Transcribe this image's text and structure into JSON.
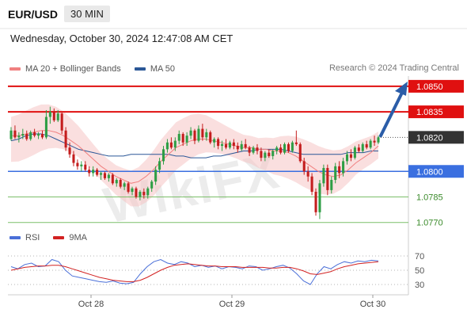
{
  "header": {
    "symbol": "EUR/USD",
    "timeframe": "30 MIN",
    "datetime": "Wednesday, October 30, 2024 12:47:08 AM CET"
  },
  "legend": {
    "ma20_label": "MA 20 + Bollinger Bands",
    "ma50_label": "MA 50",
    "ma20_color": "#f08080",
    "ma50_color": "#2b5797",
    "credit": "Research © 2024 Trading Central"
  },
  "rsi_legend": {
    "rsi_label": "RSI",
    "ma9_label": "9MA",
    "rsi_color": "#4a6fd8",
    "ma9_color": "#d22222"
  },
  "watermark": "WikiFX",
  "chart_data": [
    {
      "type": "candlestick",
      "instrument": "EUR/USD",
      "timeframe": "30 MIN",
      "x_labels": [
        "Oct 28",
        "Oct 29",
        "Oct 30"
      ],
      "ylim": [
        1.0768,
        1.0856
      ],
      "levels": [
        {
          "value": 1.085,
          "label": "1.0850",
          "color": "#e01010",
          "style": "resistance"
        },
        {
          "value": 1.0835,
          "label": "1.0835",
          "color": "#e01010",
          "style": "resistance"
        },
        {
          "value": 1.082,
          "label": "1.0820",
          "color": "#333333",
          "style": "current"
        },
        {
          "value": 1.08,
          "label": "1.0800",
          "color": "#3a6fe0",
          "style": "pivot"
        },
        {
          "value": 1.0785,
          "label": "1.0785",
          "color": "#7cbf6a",
          "style": "support"
        },
        {
          "value": 1.077,
          "label": "1.0770",
          "color": "#7cbf6a",
          "style": "support"
        }
      ],
      "projection": {
        "from": 1.082,
        "to": 1.085
      },
      "candles": [
        [
          1.0819,
          1.0826,
          1.0818,
          1.0824
        ],
        [
          1.0824,
          1.0827,
          1.0819,
          1.082
        ],
        [
          1.082,
          1.0823,
          1.0817,
          1.0821
        ],
        [
          1.0821,
          1.0825,
          1.0819,
          1.0822
        ],
        [
          1.0822,
          1.0824,
          1.0818,
          1.0819
        ],
        [
          1.0819,
          1.0824,
          1.0818,
          1.0823
        ],
        [
          1.0823,
          1.0825,
          1.082,
          1.0821
        ],
        [
          1.0821,
          1.0823,
          1.0819,
          1.0822
        ],
        [
          1.0822,
          1.0824,
          1.0819,
          1.082
        ],
        [
          1.082,
          1.0836,
          1.0819,
          1.0832
        ],
        [
          1.0832,
          1.0838,
          1.0828,
          1.0835
        ],
        [
          1.0835,
          1.0837,
          1.0829,
          1.083
        ],
        [
          1.083,
          1.0836,
          1.0829,
          1.0834
        ],
        [
          1.0834,
          1.0835,
          1.0822,
          1.0824
        ],
        [
          1.0824,
          1.0826,
          1.0812,
          1.0814
        ],
        [
          1.0814,
          1.0817,
          1.0808,
          1.081
        ],
        [
          1.081,
          1.0812,
          1.0803,
          1.0805
        ],
        [
          1.0805,
          1.0807,
          1.0801,
          1.0803
        ],
        [
          1.0803,
          1.0806,
          1.08,
          1.0804
        ],
        [
          1.0804,
          1.0806,
          1.08,
          1.0801
        ],
        [
          1.0801,
          1.0803,
          1.0797,
          1.0799
        ],
        [
          1.0799,
          1.0803,
          1.0797,
          1.0801
        ],
        [
          1.0801,
          1.0802,
          1.0797,
          1.0798
        ],
        [
          1.0798,
          1.08,
          1.0795,
          1.0799
        ],
        [
          1.0799,
          1.08,
          1.0795,
          1.0796
        ],
        [
          1.0796,
          1.0799,
          1.0794,
          1.0798
        ],
        [
          1.0798,
          1.0799,
          1.0792,
          1.0793
        ],
        [
          1.0793,
          1.0796,
          1.0791,
          1.0795
        ],
        [
          1.0795,
          1.0796,
          1.079,
          1.0791
        ],
        [
          1.0791,
          1.0794,
          1.0789,
          1.0793
        ],
        [
          1.0793,
          1.0794,
          1.0787,
          1.0788
        ],
        [
          1.0788,
          1.0791,
          1.0786,
          1.079
        ],
        [
          1.079,
          1.0791,
          1.0784,
          1.0785
        ],
        [
          1.0785,
          1.0789,
          1.0783,
          1.0788
        ],
        [
          1.0788,
          1.079,
          1.0784,
          1.0786
        ],
        [
          1.0786,
          1.0791,
          1.0784,
          1.079
        ],
        [
          1.079,
          1.0795,
          1.0788,
          1.0794
        ],
        [
          1.0794,
          1.0803,
          1.0792,
          1.0801
        ],
        [
          1.0801,
          1.0808,
          1.0799,
          1.0806
        ],
        [
          1.0806,
          1.0815,
          1.0804,
          1.0813
        ],
        [
          1.0813,
          1.0819,
          1.0811,
          1.0817
        ],
        [
          1.0817,
          1.082,
          1.0813,
          1.0814
        ],
        [
          1.0814,
          1.082,
          1.0812,
          1.0818
        ],
        [
          1.0818,
          1.0824,
          1.0816,
          1.0822
        ],
        [
          1.0822,
          1.0823,
          1.0815,
          1.0817
        ],
        [
          1.0817,
          1.0823,
          1.0815,
          1.0821
        ],
        [
          1.0821,
          1.0826,
          1.0819,
          1.0824
        ],
        [
          1.0824,
          1.0825,
          1.0816,
          1.0818
        ],
        [
          1.0818,
          1.0827,
          1.0817,
          1.0825
        ],
        [
          1.0825,
          1.0828,
          1.0818,
          1.082
        ],
        [
          1.082,
          1.0825,
          1.0818,
          1.0823
        ],
        [
          1.0823,
          1.0824,
          1.0816,
          1.0817
        ],
        [
          1.0817,
          1.082,
          1.0814,
          1.0819
        ],
        [
          1.0819,
          1.082,
          1.0813,
          1.0815
        ],
        [
          1.0815,
          1.0818,
          1.0812,
          1.0816
        ],
        [
          1.0816,
          1.0819,
          1.0813,
          1.0814
        ],
        [
          1.0814,
          1.0818,
          1.0813,
          1.0817
        ],
        [
          1.0817,
          1.0819,
          1.0813,
          1.0815
        ],
        [
          1.0815,
          1.0817,
          1.0811,
          1.0813
        ],
        [
          1.0813,
          1.0818,
          1.0812,
          1.0816
        ],
        [
          1.0816,
          1.0819,
          1.0813,
          1.0814
        ],
        [
          1.0814,
          1.0815,
          1.0809,
          1.0811
        ],
        [
          1.0811,
          1.0815,
          1.081,
          1.0814
        ],
        [
          1.0814,
          1.0816,
          1.081,
          1.0812
        ],
        [
          1.0812,
          1.0814,
          1.0806,
          1.0808
        ],
        [
          1.0808,
          1.0812,
          1.0806,
          1.0811
        ],
        [
          1.0811,
          1.0813,
          1.0808,
          1.0809
        ],
        [
          1.0809,
          1.0813,
          1.0807,
          1.0812
        ],
        [
          1.0812,
          1.0815,
          1.081,
          1.0814
        ],
        [
          1.0814,
          1.0816,
          1.081,
          1.0811
        ],
        [
          1.0811,
          1.0817,
          1.081,
          1.0816
        ],
        [
          1.0816,
          1.0817,
          1.0811,
          1.0812
        ],
        [
          1.0812,
          1.0818,
          1.0811,
          1.0817
        ],
        [
          1.0817,
          1.0824,
          1.0815,
          1.0816
        ],
        [
          1.0816,
          1.0817,
          1.0805,
          1.0806
        ],
        [
          1.0806,
          1.0808,
          1.0798,
          1.08
        ],
        [
          1.08,
          1.0803,
          1.0794,
          1.0797
        ],
        [
          1.0797,
          1.0799,
          1.0786,
          1.0788
        ],
        [
          1.0788,
          1.079,
          1.0774,
          1.0776
        ],
        [
          1.0776,
          1.0795,
          1.0772,
          1.0793
        ],
        [
          1.0793,
          1.0804,
          1.0791,
          1.0802
        ],
        [
          1.0802,
          1.0804,
          1.0786,
          1.0789
        ],
        [
          1.0789,
          1.0797,
          1.0787,
          1.0795
        ],
        [
          1.0795,
          1.0805,
          1.0793,
          1.0803
        ],
        [
          1.0803,
          1.0806,
          1.0796,
          1.0799
        ],
        [
          1.0799,
          1.0808,
          1.0797,
          1.0806
        ],
        [
          1.0806,
          1.0812,
          1.0804,
          1.081
        ],
        [
          1.081,
          1.0813,
          1.0806,
          1.0808
        ],
        [
          1.0808,
          1.0815,
          1.0807,
          1.0814
        ],
        [
          1.0814,
          1.0816,
          1.0811,
          1.0812
        ],
        [
          1.0812,
          1.0817,
          1.0811,
          1.0816
        ],
        [
          1.0816,
          1.0818,
          1.0813,
          1.0814
        ],
        [
          1.0814,
          1.0819,
          1.0813,
          1.0818
        ],
        [
          1.0818,
          1.0821,
          1.0815,
          1.0817
        ],
        [
          1.0817,
          1.0821,
          1.0816,
          1.082
        ]
      ],
      "ma20": [
        1.0821,
        1.0821,
        1.0822,
        1.0823,
        1.0824,
        1.0824,
        1.0823,
        1.0821,
        1.0818,
        1.0815,
        1.0811,
        1.0807,
        1.0803,
        1.08,
        1.0797,
        1.0795,
        1.0793,
        1.0794,
        1.0797,
        1.0801,
        1.0806,
        1.081,
        1.0814,
        1.0816,
        1.0818,
        1.0819,
        1.0819,
        1.0818,
        1.0817,
        1.0816,
        1.0815,
        1.0814,
        1.0814,
        1.0813,
        1.0813,
        1.0812,
        1.0812,
        1.0811,
        1.0809,
        1.0806,
        1.0803,
        1.08,
        1.0798,
        1.0797,
        1.0798,
        1.0801,
        1.0805,
        1.0808,
        1.0811,
        1.0815
      ],
      "ma50": [
        1.0818,
        1.0819,
        1.0821,
        1.0822,
        1.0822,
        1.0821,
        1.0819,
        1.0817,
        1.0815,
        1.0813,
        1.0812,
        1.0811,
        1.081,
        1.0809,
        1.0809,
        1.0809,
        1.081,
        1.081,
        1.081,
        1.081,
        1.081,
        1.081,
        1.0809,
        1.0809,
        1.0808,
        1.0808,
        1.0808,
        1.0809,
        1.0809,
        1.081,
        1.0811,
        1.0812,
        1.0812,
        1.0813,
        1.0813,
        1.0813,
        1.0813,
        1.0812,
        1.0811,
        1.081,
        1.081,
        1.081,
        1.081,
        1.081,
        1.081,
        1.0811,
        1.0811,
        1.0811,
        1.0812,
        1.0812
      ]
    },
    {
      "type": "line",
      "title": "RSI",
      "yticks": [
        30,
        50,
        70
      ],
      "ylim": [
        20,
        80
      ],
      "series": [
        {
          "name": "RSI",
          "color": "#4a6fd8",
          "values": [
            55,
            52,
            58,
            60,
            55,
            56,
            65,
            62,
            50,
            42,
            40,
            38,
            36,
            34,
            33,
            35,
            32,
            31,
            33,
            45,
            55,
            62,
            65,
            60,
            58,
            62,
            60,
            55,
            57,
            54,
            56,
            52,
            55,
            54,
            52,
            56,
            55,
            50,
            52,
            55,
            57,
            53,
            45,
            35,
            30,
            45,
            55,
            52,
            58,
            62,
            60,
            63,
            62,
            64,
            63
          ]
        },
        {
          "name": "9MA",
          "color": "#d22222",
          "values": [
            50,
            52,
            54,
            55,
            56,
            56,
            57,
            57,
            55,
            52,
            49,
            46,
            43,
            40,
            38,
            36,
            35,
            34,
            34,
            36,
            40,
            45,
            50,
            54,
            57,
            58,
            59,
            58,
            57,
            56,
            56,
            55,
            55,
            55,
            54,
            54,
            54,
            54,
            53,
            53,
            54,
            54,
            52,
            49,
            45,
            44,
            46,
            48,
            52,
            55,
            57,
            59,
            60,
            61,
            62
          ]
        }
      ]
    }
  ]
}
